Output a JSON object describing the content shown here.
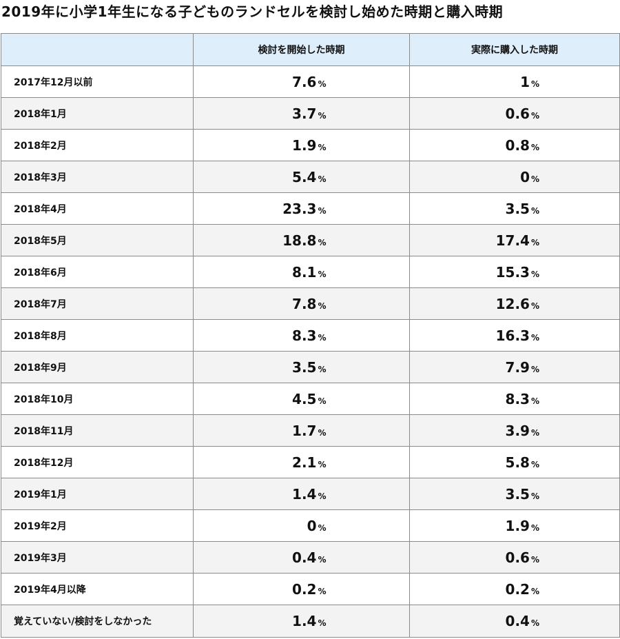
{
  "chart_data": {
    "type": "table",
    "title": "2019年に小学1年生になる子どものランドセルを検討し始めた時期と購入時期",
    "columns": [
      "",
      "検討を開始した時期",
      "実際に購入した時期"
    ],
    "unit": "%",
    "rows": [
      {
        "label": "2017年12月以前",
        "start": "7.6",
        "purchase": "1"
      },
      {
        "label": "2018年1月",
        "start": "3.7",
        "purchase": "0.6"
      },
      {
        "label": "2018年2月",
        "start": "1.9",
        "purchase": "0.8"
      },
      {
        "label": "2018年3月",
        "start": "5.4",
        "purchase": "0"
      },
      {
        "label": "2018年4月",
        "start": "23.3",
        "purchase": "3.5"
      },
      {
        "label": "2018年5月",
        "start": "18.8",
        "purchase": "17.4"
      },
      {
        "label": "2018年6月",
        "start": "8.1",
        "purchase": "15.3"
      },
      {
        "label": "2018年7月",
        "start": "7.8",
        "purchase": "12.6"
      },
      {
        "label": "2018年8月",
        "start": "8.3",
        "purchase": "16.3"
      },
      {
        "label": "2018年9月",
        "start": "3.5",
        "purchase": "7.9"
      },
      {
        "label": "2018年10月",
        "start": "4.5",
        "purchase": "8.3"
      },
      {
        "label": "2018年11月",
        "start": "1.7",
        "purchase": "3.9"
      },
      {
        "label": "2018年12月",
        "start": "2.1",
        "purchase": "5.8"
      },
      {
        "label": "2019年1月",
        "start": "1.4",
        "purchase": "3.5"
      },
      {
        "label": "2019年2月",
        "start": "0",
        "purchase": "1.9"
      },
      {
        "label": "2019年3月",
        "start": "0.4",
        "purchase": "0.6"
      },
      {
        "label": "2019年4月以降",
        "start": "0.2",
        "purchase": "0.2"
      },
      {
        "label": "覚えていない/検討をしなかった",
        "start": "1.4",
        "purchase": "0.4"
      }
    ]
  }
}
